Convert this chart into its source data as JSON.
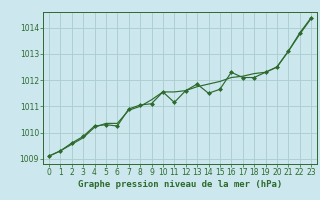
{
  "title": "Graphe pression niveau de la mer (hPa)",
  "bg_color": "#cce8ee",
  "grid_color": "#aacccc",
  "line_color": "#2d6a2d",
  "marker_color": "#2d6a2d",
  "ylim": [
    1008.8,
    1014.6
  ],
  "xlim": [
    -0.5,
    23.5
  ],
  "yticks": [
    1009,
    1010,
    1011,
    1012,
    1013,
    1014
  ],
  "xticks": [
    0,
    1,
    2,
    3,
    4,
    5,
    6,
    7,
    8,
    9,
    10,
    11,
    12,
    13,
    14,
    15,
    16,
    17,
    18,
    19,
    20,
    21,
    22,
    23
  ],
  "smooth_x": [
    0,
    1,
    2,
    3,
    4,
    5,
    6,
    7,
    8,
    9,
    10,
    11,
    12,
    13,
    14,
    15,
    16,
    17,
    18,
    19,
    20,
    21,
    22,
    23
  ],
  "smooth_y": [
    1009.1,
    1009.3,
    1009.55,
    1009.8,
    1010.2,
    1010.35,
    1010.35,
    1010.85,
    1011.0,
    1011.25,
    1011.55,
    1011.55,
    1011.6,
    1011.75,
    1011.85,
    1011.95,
    1012.1,
    1012.15,
    1012.25,
    1012.3,
    1012.5,
    1013.1,
    1013.75,
    1014.35
  ],
  "points_x": [
    0,
    1,
    2,
    3,
    4,
    5,
    6,
    7,
    8,
    9,
    10,
    11,
    12,
    13,
    14,
    15,
    16,
    17,
    18,
    19,
    20,
    21,
    22,
    23
  ],
  "points_y": [
    1009.1,
    1009.3,
    1009.6,
    1009.85,
    1010.25,
    1010.3,
    1010.25,
    1010.9,
    1011.05,
    1011.1,
    1011.55,
    1011.15,
    1011.6,
    1011.85,
    1011.5,
    1011.65,
    1012.3,
    1012.1,
    1012.1,
    1012.3,
    1012.5,
    1013.1,
    1013.8,
    1014.38
  ],
  "tick_fontsize": 5.5,
  "label_fontsize": 6.5,
  "label_fontweight": "bold"
}
